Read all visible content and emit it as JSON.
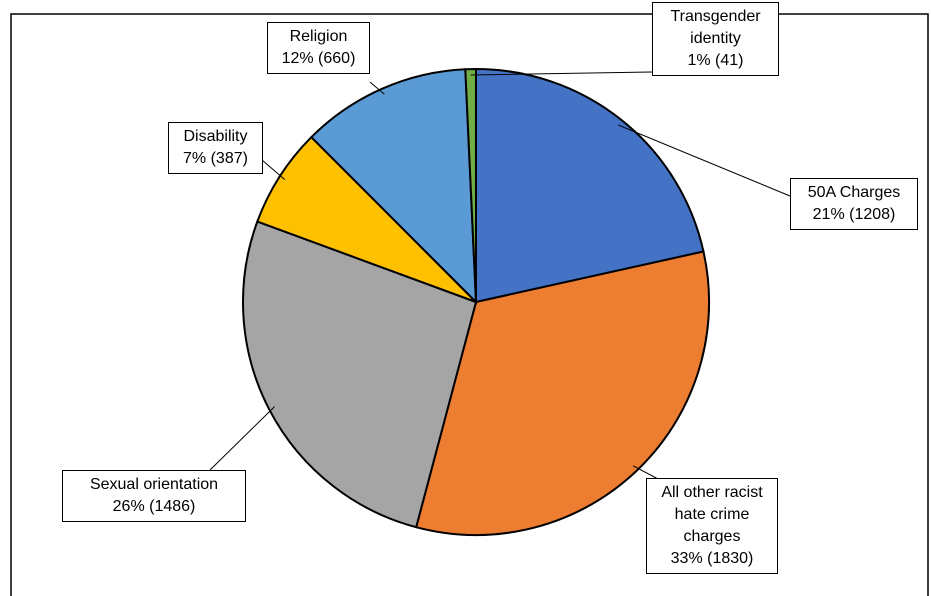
{
  "chart_data": {
    "type": "pie",
    "categories": [
      "50A Charges",
      "All other racist hate crime charges",
      "Sexual orientation",
      "Disability",
      "Religion",
      "Transgender identity"
    ],
    "values": [
      1208,
      1830,
      1486,
      387,
      660,
      41
    ],
    "value_labels": [
      "21% (1208)",
      "33% (1830)",
      "26% (1486)",
      "7% (387)",
      "12% (660)",
      "1% (41)"
    ],
    "colors": [
      "#4472c4",
      "#ed7d31",
      "#a5a5a5",
      "#ffc000",
      "#5b9bd5",
      "#70ad47"
    ]
  }
}
